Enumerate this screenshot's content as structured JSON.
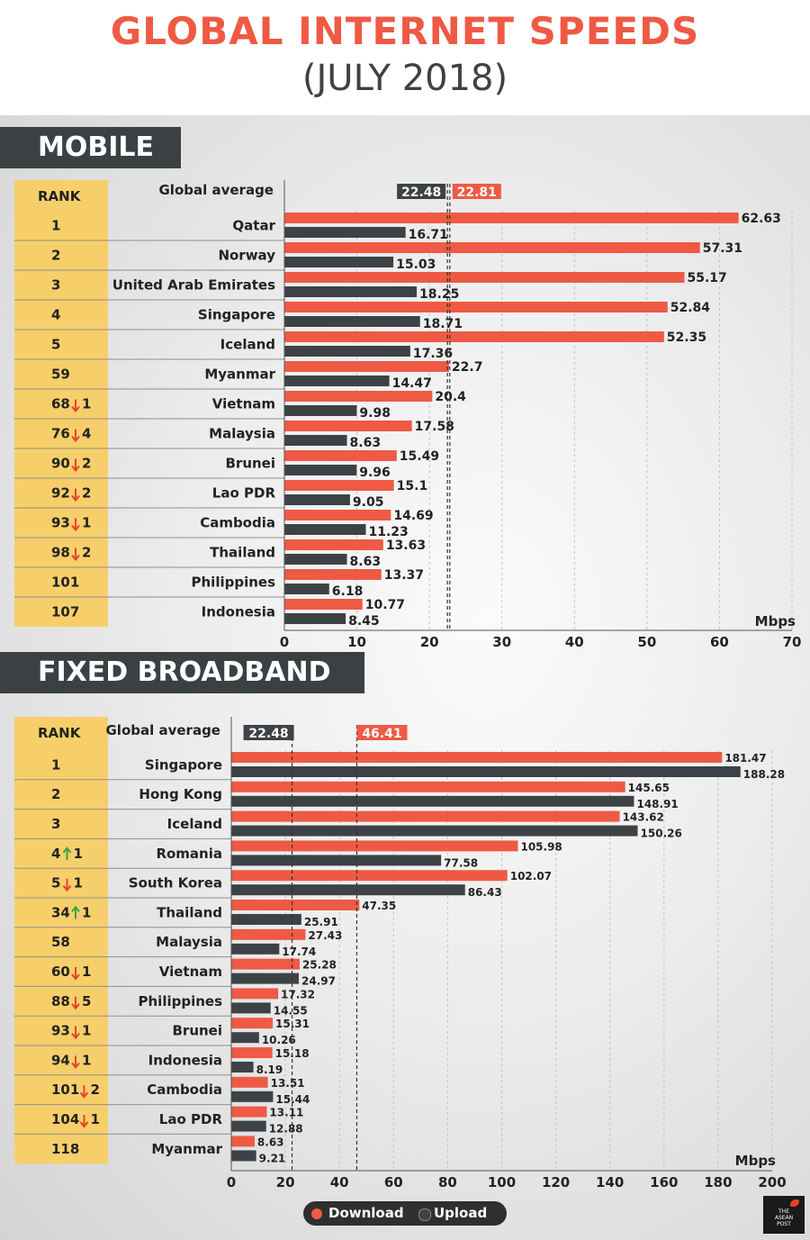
{
  "title": "GLOBAL INTERNET SPEEDS",
  "subtitle": "(JULY 2018)",
  "colors": {
    "download": "#ee5a44",
    "upload": "#3c4245",
    "rank_bg": "#f7cf6a",
    "title": "#ee5a44"
  },
  "legend": {
    "download": "Download",
    "upload": "Upload"
  },
  "logo_text": [
    "THE",
    "ASEAN",
    "POST"
  ],
  "chart_data": [
    {
      "type": "bar",
      "section": "MOBILE",
      "rank_header": "RANK",
      "average_label": "Global average",
      "average": {
        "upload": 22.48,
        "download": 22.81
      },
      "unit": "Mbps",
      "xlim": [
        0,
        70
      ],
      "ticks": [
        0,
        10,
        20,
        30,
        40,
        50,
        60,
        70
      ],
      "rows": [
        {
          "rank": "1",
          "change": "",
          "dir": "",
          "country": "Qatar",
          "download": 62.63,
          "upload": 16.71
        },
        {
          "rank": "2",
          "change": "",
          "dir": "",
          "country": "Norway",
          "download": 57.31,
          "upload": 15.03
        },
        {
          "rank": "3",
          "change": "",
          "dir": "",
          "country": "United Arab Emirates",
          "download": 55.17,
          "upload": 18.25
        },
        {
          "rank": "4",
          "change": "",
          "dir": "",
          "country": "Singapore",
          "download": 52.84,
          "upload": 18.71
        },
        {
          "rank": "5",
          "change": "",
          "dir": "",
          "country": "Iceland",
          "download": 52.35,
          "upload": 17.36
        },
        {
          "rank": "59",
          "change": "",
          "dir": "",
          "country": "Myanmar",
          "download": 22.7,
          "upload": 14.47
        },
        {
          "rank": "68",
          "change": "1",
          "dir": "down",
          "country": "Vietnam",
          "download": 20.4,
          "upload": 9.98
        },
        {
          "rank": "76",
          "change": "4",
          "dir": "down",
          "country": "Malaysia",
          "download": 17.58,
          "upload": 8.63
        },
        {
          "rank": "90",
          "change": "2",
          "dir": "down",
          "country": "Brunei",
          "download": 15.49,
          "upload": 9.96
        },
        {
          "rank": "92",
          "change": "2",
          "dir": "down",
          "country": "Lao PDR",
          "download": 15.1,
          "upload": 9.05
        },
        {
          "rank": "93",
          "change": "1",
          "dir": "down",
          "country": "Cambodia",
          "download": 14.69,
          "upload": 11.23
        },
        {
          "rank": "98",
          "change": "2",
          "dir": "down",
          "country": "Thailand",
          "download": 13.63,
          "upload": 8.63
        },
        {
          "rank": "101",
          "change": "",
          "dir": "",
          "country": "Philippines",
          "download": 13.37,
          "upload": 6.18
        },
        {
          "rank": "107",
          "change": "",
          "dir": "",
          "country": "Indonesia",
          "download": 10.77,
          "upload": 8.45
        }
      ]
    },
    {
      "type": "bar",
      "section": "FIXED BROADBAND",
      "rank_header": "RANK",
      "average_label": "Global average",
      "average": {
        "upload": 22.48,
        "download": 46.41
      },
      "unit": "Mbps",
      "xlim": [
        0,
        200
      ],
      "ticks": [
        0,
        20,
        40,
        60,
        80,
        100,
        120,
        140,
        160,
        180,
        200
      ],
      "rows": [
        {
          "rank": "1",
          "change": "",
          "dir": "",
          "country": "Singapore",
          "download": 181.47,
          "upload": 188.28
        },
        {
          "rank": "2",
          "change": "",
          "dir": "",
          "country": "Hong Kong",
          "download": 145.65,
          "upload": 148.91
        },
        {
          "rank": "3",
          "change": "",
          "dir": "",
          "country": "Iceland",
          "download": 143.62,
          "upload": 150.26
        },
        {
          "rank": "4",
          "change": "1",
          "dir": "up",
          "country": "Romania",
          "download": 105.98,
          "upload": 77.58
        },
        {
          "rank": "5",
          "change": "1",
          "dir": "down",
          "country": "South Korea",
          "download": 102.07,
          "upload": 86.43
        },
        {
          "rank": "34",
          "change": "1",
          "dir": "up",
          "country": "Thailand",
          "download": 47.35,
          "upload": 25.91
        },
        {
          "rank": "58",
          "change": "",
          "dir": "",
          "country": "Malaysia",
          "download": 27.43,
          "upload": 17.74
        },
        {
          "rank": "60",
          "change": "1",
          "dir": "down",
          "country": "Vietnam",
          "download": 25.28,
          "upload": 24.97
        },
        {
          "rank": "88",
          "change": "5",
          "dir": "down",
          "country": "Philippines",
          "download": 17.32,
          "upload": 14.55
        },
        {
          "rank": "93",
          "change": "1",
          "dir": "down",
          "country": "Brunei",
          "download": 15.31,
          "upload": 10.26
        },
        {
          "rank": "94",
          "change": "1",
          "dir": "down",
          "country": "Indonesia",
          "download": 15.18,
          "upload": 8.19
        },
        {
          "rank": "101",
          "change": "2",
          "dir": "down",
          "country": "Cambodia",
          "download": 13.51,
          "upload": 15.44
        },
        {
          "rank": "104",
          "change": "1",
          "dir": "down",
          "country": "Lao PDR",
          "download": 13.11,
          "upload": 12.88
        },
        {
          "rank": "118",
          "change": "",
          "dir": "",
          "country": "Myanmar",
          "download": 8.63,
          "upload": 9.21
        }
      ]
    }
  ]
}
